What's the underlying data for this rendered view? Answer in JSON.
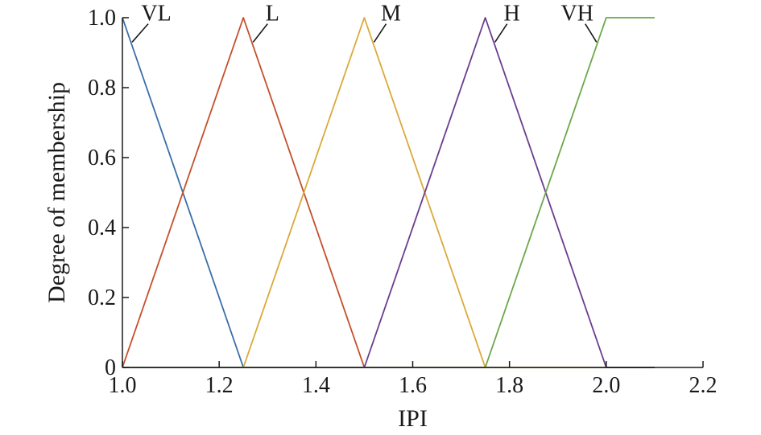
{
  "chart_data": {
    "type": "line",
    "title": "",
    "xlabel": "IPI",
    "ylabel": "Degree of membership",
    "xlim": [
      1.0,
      2.2
    ],
    "ylim": [
      0,
      1.0
    ],
    "xticks": [
      1.0,
      1.2,
      1.4,
      1.6,
      1.8,
      2.0,
      2.2
    ],
    "xtick_labels": [
      "1.0",
      "1.2",
      "1.4",
      "1.6",
      "1.8",
      "2.0",
      "2.2"
    ],
    "yticks": [
      0,
      0.2,
      0.4,
      0.6,
      0.8,
      1.0
    ],
    "ytick_labels": [
      "0",
      "0.2",
      "0.4",
      "0.6",
      "0.8",
      "1.0"
    ],
    "grid": false,
    "legend": "none",
    "series": [
      {
        "name": "VL",
        "color": "#3a6ea8",
        "x": [
          1.0,
          1.25,
          2.1
        ],
        "y": [
          1.0,
          0,
          0
        ],
        "label_x": 1.07,
        "label_y": 1.01,
        "leader_x": 1.02,
        "leader_y": 0.93
      },
      {
        "name": "L",
        "color": "#c4502a",
        "x": [
          1.0,
          1.25,
          1.5,
          2.1
        ],
        "y": [
          0,
          1.0,
          0,
          0
        ],
        "label_x": 1.31,
        "label_y": 1.01,
        "leader_x": 1.27,
        "leader_y": 0.93
      },
      {
        "name": "M",
        "color": "#dba93a",
        "x": [
          1.0,
          1.25,
          1.5,
          1.75,
          2.0
        ],
        "y": [
          0,
          0,
          1.0,
          0,
          0
        ],
        "label_x": 1.555,
        "label_y": 1.01,
        "leader_x": 1.52,
        "leader_y": 0.93
      },
      {
        "name": "H",
        "color": "#6a3d8f",
        "x": [
          1.0,
          1.5,
          1.75,
          2.0,
          2.1
        ],
        "y": [
          0,
          0,
          1.0,
          0,
          0
        ],
        "label_x": 1.805,
        "label_y": 1.01,
        "leader_x": 1.77,
        "leader_y": 0.93
      },
      {
        "name": "VH",
        "color": "#6ba84a",
        "x": [
          1.0,
          1.75,
          2.0,
          2.1
        ],
        "y": [
          0,
          0,
          1.0,
          1.0
        ],
        "label_x": 1.94,
        "label_y": 1.01,
        "leader_x": 1.98,
        "leader_y": 0.93
      }
    ]
  }
}
